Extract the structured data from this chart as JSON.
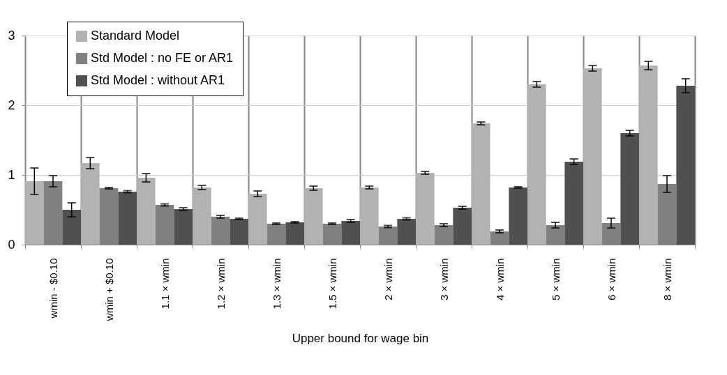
{
  "chart_data": {
    "type": "bar",
    "xlabel": "Upper bound for wage bin",
    "categories": [
      "wmin - $0.10",
      "wmin + $0.10",
      "1.1 × wmin",
      "1.2 × wmin",
      "1.3 × wmin",
      "1.5 × wmin",
      "2 × wmin",
      "3 × wmin",
      "4 × wmin",
      "5 × wmin",
      "6 × wmin",
      "8 × wmin"
    ],
    "series": [
      {
        "name": "Standard Model",
        "color": "#b2b2b2",
        "values": [
          0.91,
          1.17,
          0.96,
          0.82,
          0.73,
          0.81,
          0.82,
          1.03,
          1.74,
          2.3,
          2.53,
          2.57
        ],
        "errors": [
          0.19,
          0.08,
          0.06,
          0.03,
          0.04,
          0.03,
          0.02,
          0.02,
          0.02,
          0.04,
          0.04,
          0.06
        ]
      },
      {
        "name": "Std Model : no FE or AR1",
        "color": "#808080",
        "values": [
          0.91,
          0.81,
          0.57,
          0.4,
          0.3,
          0.3,
          0.26,
          0.28,
          0.19,
          0.28,
          0.31,
          0.87
        ],
        "errors": [
          0.08,
          0.01,
          0.015,
          0.02,
          0.01,
          0.01,
          0.015,
          0.02,
          0.02,
          0.04,
          0.07,
          0.12
        ]
      },
      {
        "name": "Std Model : without AR1",
        "color": "#505050",
        "values": [
          0.5,
          0.76,
          0.51,
          0.37,
          0.32,
          0.34,
          0.37,
          0.53,
          0.82,
          1.19,
          1.6,
          2.28
        ],
        "errors": [
          0.1,
          0.015,
          0.02,
          0.01,
          0.01,
          0.02,
          0.015,
          0.02,
          0.01,
          0.04,
          0.04,
          0.1
        ]
      }
    ],
    "ylim": [
      0,
      3
    ],
    "yticks": [
      0,
      1,
      2,
      3
    ],
    "grid": true,
    "legend": "top left"
  }
}
